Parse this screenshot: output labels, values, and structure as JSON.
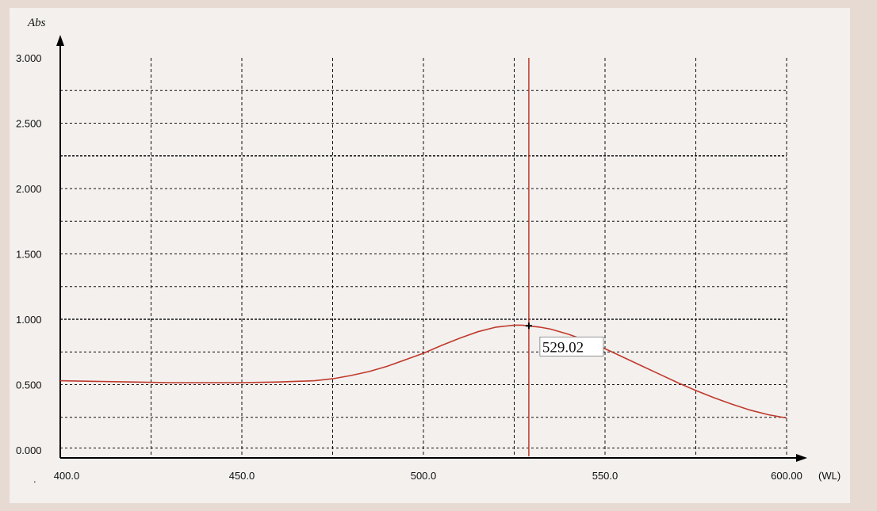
{
  "chart_data": {
    "type": "line",
    "ylabel": "Abs",
    "xlabel": "(WL)",
    "xlim": [
      400.0,
      600.0
    ],
    "ylim": [
      0.0,
      3.0
    ],
    "x_ticks": [
      {
        "value": 400,
        "label": "400.0"
      },
      {
        "value": 450,
        "label": "450.0"
      },
      {
        "value": 500,
        "label": "500.0"
      },
      {
        "value": 550,
        "label": "550.0"
      },
      {
        "value": 600,
        "label": "600.00"
      }
    ],
    "y_ticks": [
      {
        "value": 0.0,
        "label": "0.000"
      },
      {
        "value": 0.5,
        "label": "0.500"
      },
      {
        "value": 1.0,
        "label": "1.000"
      },
      {
        "value": 1.5,
        "label": "1.500"
      },
      {
        "value": 2.0,
        "label": "2.000"
      },
      {
        "value": 2.5,
        "label": "2.500"
      },
      {
        "value": 3.0,
        "label": "3.000"
      }
    ],
    "grid": true,
    "grid_x": [
      425,
      450,
      475,
      500,
      525,
      550,
      575,
      600
    ],
    "grid_y": [
      0.25,
      0.5,
      0.75,
      1.0,
      1.25,
      1.5,
      1.75,
      2.0,
      2.25,
      2.5,
      2.75
    ],
    "cursor": {
      "x": 529.02,
      "y": 0.95,
      "label": "529.02"
    },
    "series": [
      {
        "x": [
          400,
          410,
          420,
          430,
          440,
          450,
          460,
          470,
          475,
          480,
          485,
          490,
          495,
          500,
          505,
          510,
          515,
          520,
          525,
          527,
          529,
          532,
          535,
          540,
          545,
          550,
          555,
          560,
          565,
          570,
          575,
          580,
          585,
          590,
          595,
          600
        ],
        "y": [
          0.53,
          0.525,
          0.52,
          0.515,
          0.515,
          0.515,
          0.52,
          0.53,
          0.545,
          0.57,
          0.6,
          0.64,
          0.69,
          0.74,
          0.8,
          0.855,
          0.905,
          0.94,
          0.955,
          0.955,
          0.95,
          0.94,
          0.925,
          0.885,
          0.835,
          0.775,
          0.71,
          0.645,
          0.58,
          0.515,
          0.455,
          0.4,
          0.35,
          0.305,
          0.27,
          0.245
        ]
      }
    ],
    "colors": {
      "background": "#e6dad3",
      "plot_area": "#ffffff",
      "line": "#c0392b",
      "cursor": "#c0392b",
      "grid": "#111111"
    }
  }
}
